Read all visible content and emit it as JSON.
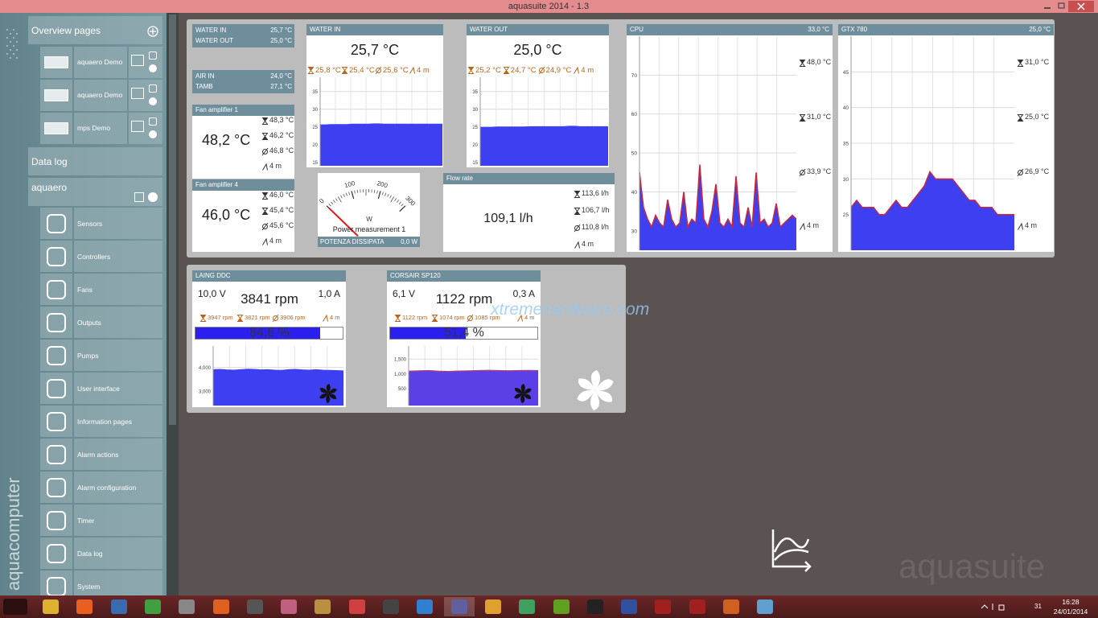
{
  "window": {
    "title": "aquasuite 2014 - 1.3"
  },
  "sidebar": {
    "brand": "aquacomputer",
    "overview": {
      "title": "Overview pages",
      "pages": [
        "aquaero Demo",
        "aquaero Demo",
        "mps Demo"
      ]
    },
    "data_log": "Data log",
    "device": "aquaero",
    "menu": [
      "Sensors",
      "Controllers",
      "Fans",
      "Outputs",
      "Pumps",
      "User interface",
      "Information pages",
      "Alarm actions",
      "Alarm configuration",
      "Timer",
      "Data log",
      "System"
    ]
  },
  "overview": {
    "summary": [
      {
        "label": "WATER IN",
        "value": "25,7 °C"
      },
      {
        "label": "WATER OUT",
        "value": "25,0 °C"
      },
      {
        "label": "AIR IN",
        "value": "24,0 °C"
      },
      {
        "label": "TAMB",
        "value": "27,1 °C"
      }
    ],
    "fan_amplifier_1": {
      "title": "Fan amplifier 1",
      "value": "48,2 °C",
      "max": "48,3 °C",
      "min": "46,2 °C",
      "avg": "46,8 °C",
      "span": "4 m"
    },
    "fan_amplifier_4": {
      "title": "Fan amplifier 4",
      "value": "46,0 °C",
      "max": "46,0 °C",
      "min": "45,4 °C",
      "avg": "45,6 °C",
      "span": "4 m"
    },
    "water_in": {
      "title": "WATER IN",
      "value": "25,7 °C",
      "max": "25,8 °C",
      "min": "25,4 °C",
      "avg": "25,6 °C",
      "span": "4 m",
      "graph": {
        "ylim": [
          14,
          39
        ],
        "yticks": [
          15,
          20,
          25,
          30,
          35
        ],
        "fill": "#3f3ff2",
        "line": "#3f3ff2",
        "values": [
          25.5,
          25.5,
          25.6,
          25.6,
          25.6,
          25.6,
          25.7,
          25.7,
          25.7,
          25.7,
          25.8,
          25.8,
          25.7,
          25.7,
          25.7,
          25.7,
          25.7,
          25.7,
          25.7,
          25.7,
          25.7,
          25.7,
          25.7,
          25.7
        ]
      }
    },
    "water_out": {
      "title": "WATER OUT",
      "value": "25,0 °C",
      "max": "25,2 °C",
      "min": "24,7 °C",
      "avg": "24,9 °C",
      "span": "4 m",
      "graph": {
        "ylim": [
          14,
          39
        ],
        "yticks": [
          15,
          20,
          25,
          30,
          35
        ],
        "fill": "#3f3ff2",
        "line": "#3f3ff2",
        "values": [
          24.8,
          24.8,
          24.8,
          24.9,
          24.9,
          24.9,
          24.9,
          24.9,
          24.9,
          25.0,
          25.0,
          25.0,
          25.0,
          25.0,
          25.0,
          25.0,
          25.1,
          25.1,
          25.0,
          25.0,
          25.0,
          25.0,
          25.0,
          25.0
        ]
      }
    },
    "power": {
      "title": "Power measurement 1",
      "unit": "W",
      "lim": [
        0,
        300
      ],
      "ticks": [
        0,
        100,
        200,
        300
      ],
      "label": "POTENZA DISSIPATA",
      "needle": {
        "value": 0,
        "label": "0,0 W"
      }
    },
    "flow_rate": {
      "title": "Flow rate",
      "value": "109,1 l/h",
      "max": "113,6 l/h",
      "min": "106,7 l/h",
      "avg": "110,8 l/h",
      "span": "4 m"
    },
    "cpu": {
      "title": "CPU",
      "current": "33,0 °C",
      "max": "48,0 °C",
      "min": "31,0 °C",
      "avg": "33,9 °C",
      "span": "4 m",
      "graph": {
        "ylim": [
          25,
          80
        ],
        "yticks": [
          30,
          40,
          50,
          60,
          70
        ],
        "fill": "#3f3ff2",
        "line": "#c8283c",
        "values": [
          45,
          36,
          33,
          31,
          34,
          32,
          31,
          38,
          33,
          31,
          32,
          40,
          31,
          33,
          32,
          47,
          33,
          31,
          35,
          42,
          32,
          31,
          33,
          31,
          44,
          32,
          31,
          36,
          31,
          45,
          32,
          33,
          31,
          32,
          37,
          31,
          32,
          33,
          34,
          33
        ]
      }
    },
    "gtx_780": {
      "title": "GTX 780",
      "current": "25,0 °C",
      "max": "31,0 °C",
      "min": "25,0 °C",
      "avg": "26,9 °C",
      "span": "4 m",
      "graph": {
        "ylim": [
          20,
          50
        ],
        "yticks": [
          25,
          30,
          35,
          40,
          45
        ],
        "fill": "#3f3ff2",
        "line": "#c8283c",
        "values": [
          26,
          27,
          26,
          26,
          26,
          25,
          25,
          26,
          27,
          26,
          26,
          27,
          28,
          29,
          31,
          30,
          30,
          30,
          30,
          29,
          28,
          27,
          27,
          26,
          26,
          26,
          25,
          25,
          25,
          25
        ]
      }
    },
    "laing_ddc": {
      "title": "LAING DDC",
      "voltage": "10,0 V",
      "speed": "3841 rpm",
      "current": "1,0 A",
      "max": "3947 rpm",
      "min": "3821 rpm",
      "avg": "3906 rpm",
      "span": "4 m",
      "load": {
        "value": 84.6,
        "label": "84,6 %"
      },
      "graph": {
        "ylim": [
          2400,
          4900
        ],
        "yticks": [
          {
            "value": 3000,
            "label": "3,000"
          },
          {
            "value": 4000,
            "label": "4,000"
          }
        ],
        "fill": "#3f3ff2",
        "line": "#3f3ff2",
        "values": [
          3900,
          3910,
          3890,
          3880,
          3900,
          3920,
          3910,
          3890,
          3900,
          3880,
          3870,
          3900,
          3910,
          3890,
          3880,
          3900,
          3880,
          3870,
          3860,
          3850
        ]
      }
    },
    "corsair_sp120": {
      "title": "CORSAIR SP120",
      "voltage": "6,1 V",
      "speed": "1122 rpm",
      "current": "0,3 A",
      "max": "1122 rpm",
      "min": "1074 rpm",
      "avg": "1085 rpm",
      "span": "4 m",
      "load": {
        "value": 51.4,
        "label": "51,4 %"
      },
      "graph": {
        "ylim": [
          -100,
          1950
        ],
        "yticks": [
          500,
          {
            "value": 1000,
            "label": "1,000"
          },
          {
            "value": 1500,
            "label": "1,500"
          }
        ],
        "fill": "#5a40e6",
        "line": "#a0408a",
        "values": [
          1080,
          1090,
          1100,
          1080,
          1070,
          1085,
          1090,
          1100,
          1110,
          1100,
          1095,
          1100,
          1105,
          1100
        ]
      }
    }
  },
  "watermark": "xtremehardware.com",
  "logo": "aquasuite",
  "taskbar": {
    "time": "16:28",
    "date": "24/01/2014",
    "badge": "31"
  }
}
